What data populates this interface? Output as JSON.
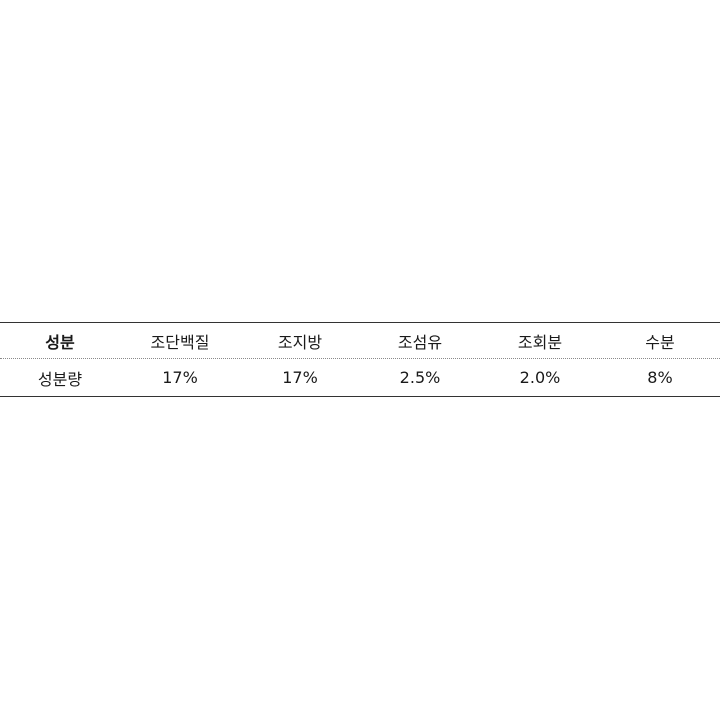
{
  "table": {
    "header": {
      "label": "성분",
      "columns": [
        "조단백질",
        "조지방",
        "조섬유",
        "조회분",
        "수분"
      ]
    },
    "row": {
      "label": "성분량",
      "values": [
        "17%",
        "17%",
        "2.5%",
        "2.0%",
        "8%"
      ]
    }
  }
}
